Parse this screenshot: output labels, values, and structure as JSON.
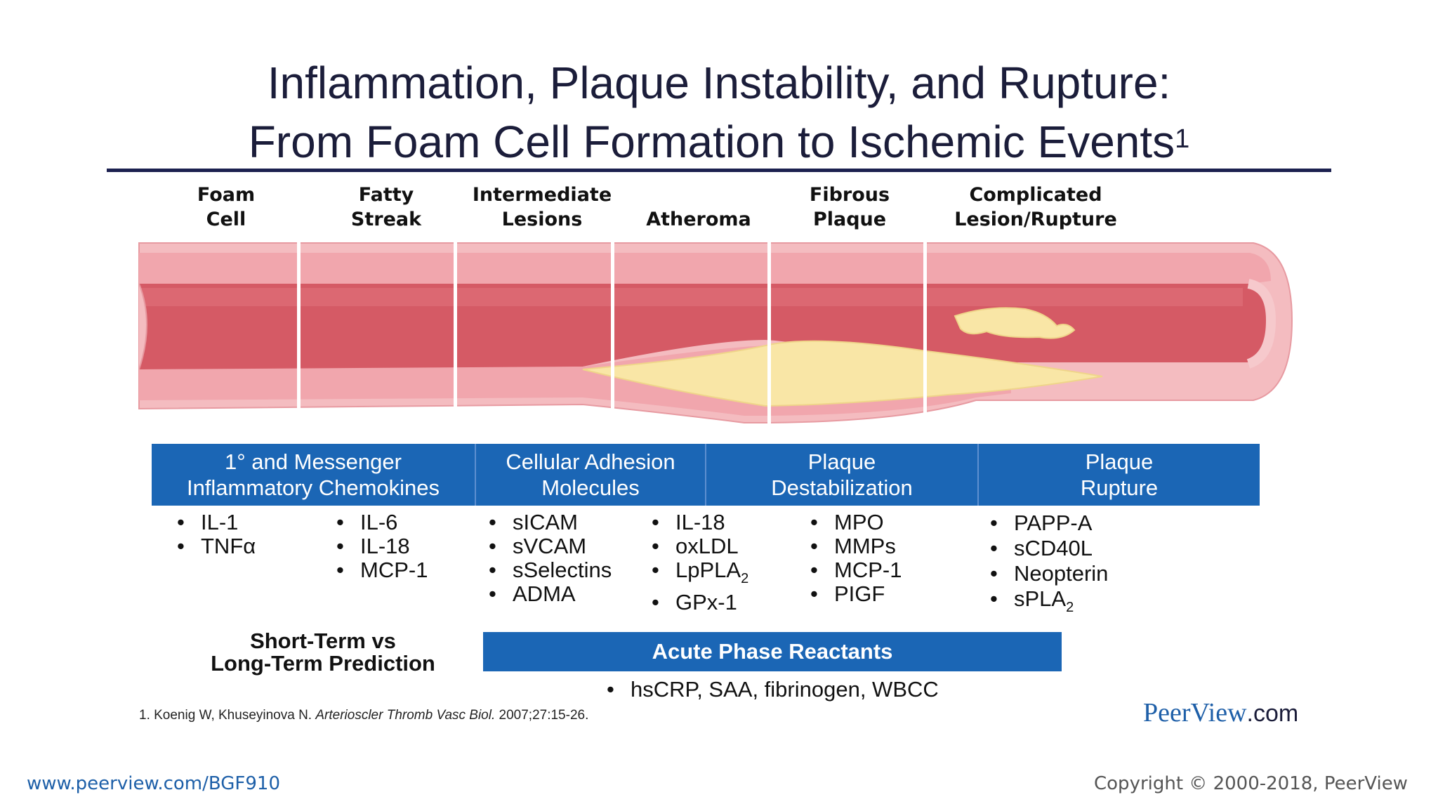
{
  "title": {
    "line1": "Inflammation, Plaque Instability, and Rupture:",
    "line2": "From Foam Cell Formation to Ischemic Events",
    "superscript": "1"
  },
  "stages": [
    {
      "line1": "Foam",
      "line2": "Cell"
    },
    {
      "line1": "Fatty",
      "line2": "Streak"
    },
    {
      "line1": "Intermediate",
      "line2": "Lesions"
    },
    {
      "line1": "",
      "line2": "Atheroma"
    },
    {
      "line1": "Fibrous",
      "line2": "Plaque"
    },
    {
      "line1": "Complicated",
      "line2": "Lesion/Rupture"
    }
  ],
  "categories": [
    {
      "line1": "1° and Messenger",
      "line2": "Inflammatory Chemokines"
    },
    {
      "line1": "Cellular Adhesion",
      "line2": "Molecules"
    },
    {
      "line1": "Plaque",
      "line2": "Destabilization"
    },
    {
      "line1": "Plaque",
      "line2": "Rupture"
    }
  ],
  "markers": {
    "chemokines_a": [
      "IL-1",
      "TNFα"
    ],
    "chemokines_b": [
      "IL-6",
      "IL-18",
      "MCP-1"
    ],
    "adhesion_a": [
      "sICAM",
      "sVCAM",
      "sSelectins",
      "ADMA"
    ],
    "adhesion_b": {
      "item1": "IL-18",
      "item2": "oxLDL",
      "item3_main": "LpPLA",
      "item3_sub": "2",
      "item4": "GPx-1"
    },
    "destabilization": [
      "MPO",
      "MMPs",
      "MCP-1",
      "PIGF"
    ],
    "rupture": {
      "item1": "PAPP-A",
      "item2": "sCD40L",
      "item3": "Neopterin",
      "item4_main": "sPLA",
      "item4_sub": "2"
    }
  },
  "prediction": {
    "line1": "Short-Term vs",
    "line2": "Long-Term Prediction"
  },
  "acute_phase": {
    "header": "Acute Phase Reactants",
    "item": "hsCRP, SAA, fibrinogen, WBCC"
  },
  "footnote": {
    "prefix": "1. Koenig W, Khuseyinova N.",
    "journal": "Arterioscler Thromb Vasc Biol.",
    "suffix": "2007;27:15-26."
  },
  "brand": {
    "name": "PeerView",
    "suffix": ".com"
  },
  "footer": {
    "url": "www.peerview.com/BGF910",
    "copyright": "Copyright © 2000-2018, PeerView"
  },
  "colors": {
    "title": "#1b1d3a",
    "bar_blue": "#1b66b5",
    "vessel_wall": "#f3b3b8",
    "lumen": "#d9535f",
    "plaque": "#f9e6a6"
  }
}
